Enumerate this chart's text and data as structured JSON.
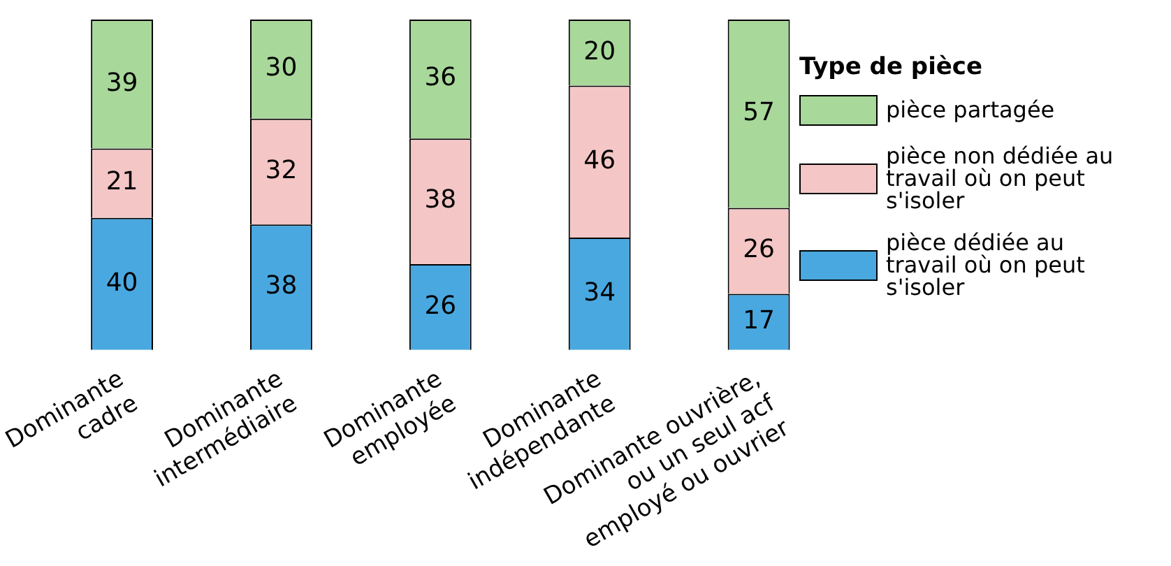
{
  "chart_data": {
    "type": "bar",
    "stacked": true,
    "legend": "right",
    "legend_title": "Type de pièce",
    "grid": false,
    "tick_labels": "x",
    "data_labels": true,
    "categories": [
      "Dominante\ncadre",
      "Dominante\nintermédiaire",
      "Dominante\nemployée",
      "Dominante\nindépendante",
      "Dominante ouvrière,\nou un seul acf\nemployé ou ouvrier"
    ],
    "series": [
      {
        "name": "pièce dédiée au travail où on peut s'isoler",
        "color": "#4aa8e0",
        "values": [
          40,
          38,
          26,
          34,
          17
        ]
      },
      {
        "name": "pièce non dédiée au travail où on peut s'isoler",
        "color": "#f4c6c6",
        "values": [
          21,
          32,
          38,
          46,
          26
        ]
      },
      {
        "name": "pièce partagée",
        "color": "#a8d89a",
        "values": [
          39,
          30,
          36,
          20,
          57
        ]
      }
    ]
  }
}
